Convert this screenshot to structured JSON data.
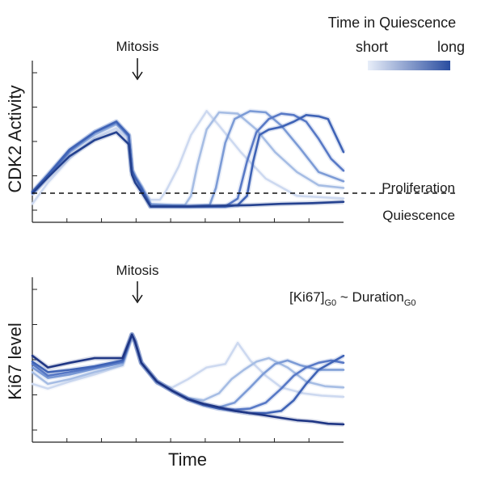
{
  "legend": {
    "title": "Time in Quiescence",
    "low_label": "short",
    "high_label": "long",
    "color_low": "#e8eef9",
    "color_high": "#2a4da0"
  },
  "chart_data": [
    {
      "type": "line",
      "panel": "top",
      "ylabel": "CDK2 Activity",
      "xlabel": "",
      "annotation_arrow": "Mitosis",
      "threshold_line": {
        "y": 0.14,
        "style": "dashed"
      },
      "threshold_label_above": "Proliferation",
      "threshold_label_below": "Quiescence",
      "xlim": [
        0,
        100
      ],
      "ylim": [
        0,
        1
      ],
      "series": [
        {
          "name": "shortest quiescence",
          "color": "#cdd9f0",
          "x": [
            0,
            5,
            12,
            20,
            27,
            31,
            32,
            33,
            35,
            38,
            41,
            43,
            47,
            51,
            56,
            60,
            67,
            75,
            85,
            100
          ],
          "y": [
            0.06,
            0.22,
            0.4,
            0.56,
            0.63,
            0.55,
            0.3,
            0.25,
            0.18,
            0.09,
            0.09,
            0.16,
            0.34,
            0.58,
            0.76,
            0.65,
            0.45,
            0.25,
            0.12,
            0.1
          ]
        },
        {
          "name": "short quiescence",
          "color": "#a6bde4",
          "x": [
            0,
            5,
            12,
            20,
            27,
            31,
            32,
            33,
            35,
            38,
            45,
            49,
            51,
            53,
            56,
            60,
            66,
            72,
            78,
            85,
            92,
            100
          ],
          "y": [
            0.13,
            0.26,
            0.45,
            0.58,
            0.66,
            0.57,
            0.32,
            0.27,
            0.19,
            0.06,
            0.05,
            0.05,
            0.12,
            0.35,
            0.62,
            0.75,
            0.74,
            0.62,
            0.45,
            0.3,
            0.2,
            0.18
          ]
        },
        {
          "name": "medium quiescence",
          "color": "#7c9bd6",
          "x": [
            0,
            5,
            12,
            20,
            27,
            31,
            32,
            33,
            35,
            38,
            50,
            57,
            59,
            62,
            65,
            70,
            75,
            80,
            86,
            92,
            100
          ],
          "y": [
            0.14,
            0.28,
            0.46,
            0.6,
            0.67,
            0.58,
            0.31,
            0.26,
            0.19,
            0.05,
            0.04,
            0.05,
            0.18,
            0.52,
            0.7,
            0.76,
            0.75,
            0.65,
            0.48,
            0.3,
            0.23
          ]
        },
        {
          "name": "long quiescence",
          "color": "#5879c6",
          "x": [
            0,
            5,
            12,
            20,
            27,
            31,
            32,
            33,
            35,
            38,
            50,
            62,
            66,
            69,
            72,
            76,
            80,
            84,
            88,
            92,
            96,
            100
          ],
          "y": [
            0.14,
            0.27,
            0.46,
            0.6,
            0.68,
            0.57,
            0.31,
            0.26,
            0.18,
            0.04,
            0.04,
            0.04,
            0.1,
            0.38,
            0.6,
            0.7,
            0.74,
            0.73,
            0.68,
            0.55,
            0.4,
            0.31
          ]
        },
        {
          "name": "longer quiescence",
          "color": "#3f63b6",
          "x": [
            0,
            5,
            12,
            20,
            27,
            31,
            32,
            33,
            35,
            38,
            50,
            62,
            66,
            69,
            71,
            73,
            76,
            80,
            84,
            88,
            92,
            95,
            97,
            100
          ],
          "y": [
            0.15,
            0.28,
            0.47,
            0.6,
            0.68,
            0.58,
            0.31,
            0.26,
            0.18,
            0.04,
            0.04,
            0.04,
            0.05,
            0.12,
            0.38,
            0.58,
            0.62,
            0.64,
            0.68,
            0.73,
            0.72,
            0.7,
            0.6,
            0.45
          ]
        },
        {
          "name": "longest quiescence",
          "color": "#24418f",
          "x": [
            0,
            5,
            12,
            20,
            27,
            31,
            32,
            33,
            35,
            38,
            50,
            60,
            70,
            80,
            90,
            100
          ],
          "y": [
            0.14,
            0.26,
            0.42,
            0.54,
            0.6,
            0.51,
            0.28,
            0.22,
            0.15,
            0.04,
            0.04,
            0.045,
            0.05,
            0.06,
            0.065,
            0.075
          ]
        }
      ]
    },
    {
      "type": "line",
      "panel": "bottom",
      "ylabel": "Ki67 level",
      "xlabel": "Time",
      "annotation_arrow": "Mitosis",
      "formula_main": "[Ki67]",
      "formula_sub": "G0",
      "formula_mid": " ~ Duration",
      "formula_sub2": "G0",
      "xlim": [
        0,
        100
      ],
      "ylim": [
        0,
        1
      ],
      "series": [
        {
          "name": "shortest quiescence",
          "color": "#cdd9f0",
          "x": [
            0,
            5,
            12,
            20,
            29,
            32,
            33,
            35,
            40,
            45,
            50,
            56,
            62,
            66,
            70,
            75,
            80,
            87,
            93,
            100
          ],
          "y": [
            0.38,
            0.34,
            0.4,
            0.46,
            0.54,
            0.8,
            0.73,
            0.56,
            0.38,
            0.35,
            0.42,
            0.52,
            0.55,
            0.73,
            0.58,
            0.45,
            0.35,
            0.3,
            0.28,
            0.27
          ]
        },
        {
          "name": "short quiescence",
          "color": "#a6bde4",
          "x": [
            0,
            5,
            12,
            20,
            29,
            32,
            33,
            35,
            40,
            45,
            50,
            55,
            60,
            64,
            68,
            72,
            76,
            82,
            88,
            94,
            100
          ],
          "y": [
            0.48,
            0.38,
            0.42,
            0.48,
            0.54,
            0.8,
            0.74,
            0.56,
            0.4,
            0.32,
            0.26,
            0.24,
            0.3,
            0.42,
            0.5,
            0.57,
            0.6,
            0.52,
            0.4,
            0.36,
            0.35
          ]
        },
        {
          "name": "medium quiescence",
          "color": "#7c9bd6",
          "x": [
            0,
            5,
            12,
            20,
            29,
            32,
            33,
            35,
            40,
            45,
            50,
            55,
            60,
            65,
            70,
            74,
            78,
            82,
            86,
            92,
            100
          ],
          "y": [
            0.52,
            0.43,
            0.46,
            0.51,
            0.56,
            0.8,
            0.74,
            0.56,
            0.4,
            0.32,
            0.25,
            0.21,
            0.18,
            0.22,
            0.35,
            0.46,
            0.55,
            0.58,
            0.54,
            0.5,
            0.5
          ]
        },
        {
          "name": "long quiescence",
          "color": "#5879c6",
          "x": [
            0,
            5,
            12,
            20,
            29,
            32,
            33,
            35,
            40,
            45,
            50,
            55,
            60,
            65,
            70,
            75,
            80,
            84,
            88,
            92,
            96,
            100
          ],
          "y": [
            0.55,
            0.45,
            0.48,
            0.52,
            0.57,
            0.8,
            0.74,
            0.56,
            0.4,
            0.32,
            0.25,
            0.2,
            0.17,
            0.16,
            0.17,
            0.22,
            0.34,
            0.45,
            0.52,
            0.56,
            0.58,
            0.56
          ]
        },
        {
          "name": "longer quiescence",
          "color": "#3f63b6",
          "x": [
            0,
            5,
            12,
            20,
            29,
            32,
            33,
            35,
            40,
            45,
            50,
            55,
            60,
            65,
            70,
            75,
            80,
            84,
            88,
            92,
            96,
            100
          ],
          "y": [
            0.57,
            0.48,
            0.5,
            0.53,
            0.58,
            0.8,
            0.74,
            0.56,
            0.4,
            0.32,
            0.25,
            0.2,
            0.17,
            0.15,
            0.13,
            0.13,
            0.15,
            0.24,
            0.38,
            0.5,
            0.56,
            0.62
          ]
        },
        {
          "name": "longest quiescence",
          "color": "#1f3684",
          "x": [
            0,
            5,
            12,
            20,
            29,
            32,
            33,
            35,
            40,
            45,
            50,
            55,
            60,
            65,
            70,
            75,
            80,
            85,
            90,
            95,
            100
          ],
          "y": [
            0.62,
            0.52,
            0.56,
            0.6,
            0.6,
            0.8,
            0.74,
            0.56,
            0.4,
            0.32,
            0.25,
            0.21,
            0.18,
            0.15,
            0.13,
            0.11,
            0.09,
            0.07,
            0.06,
            0.04,
            0.035
          ]
        }
      ]
    }
  ]
}
